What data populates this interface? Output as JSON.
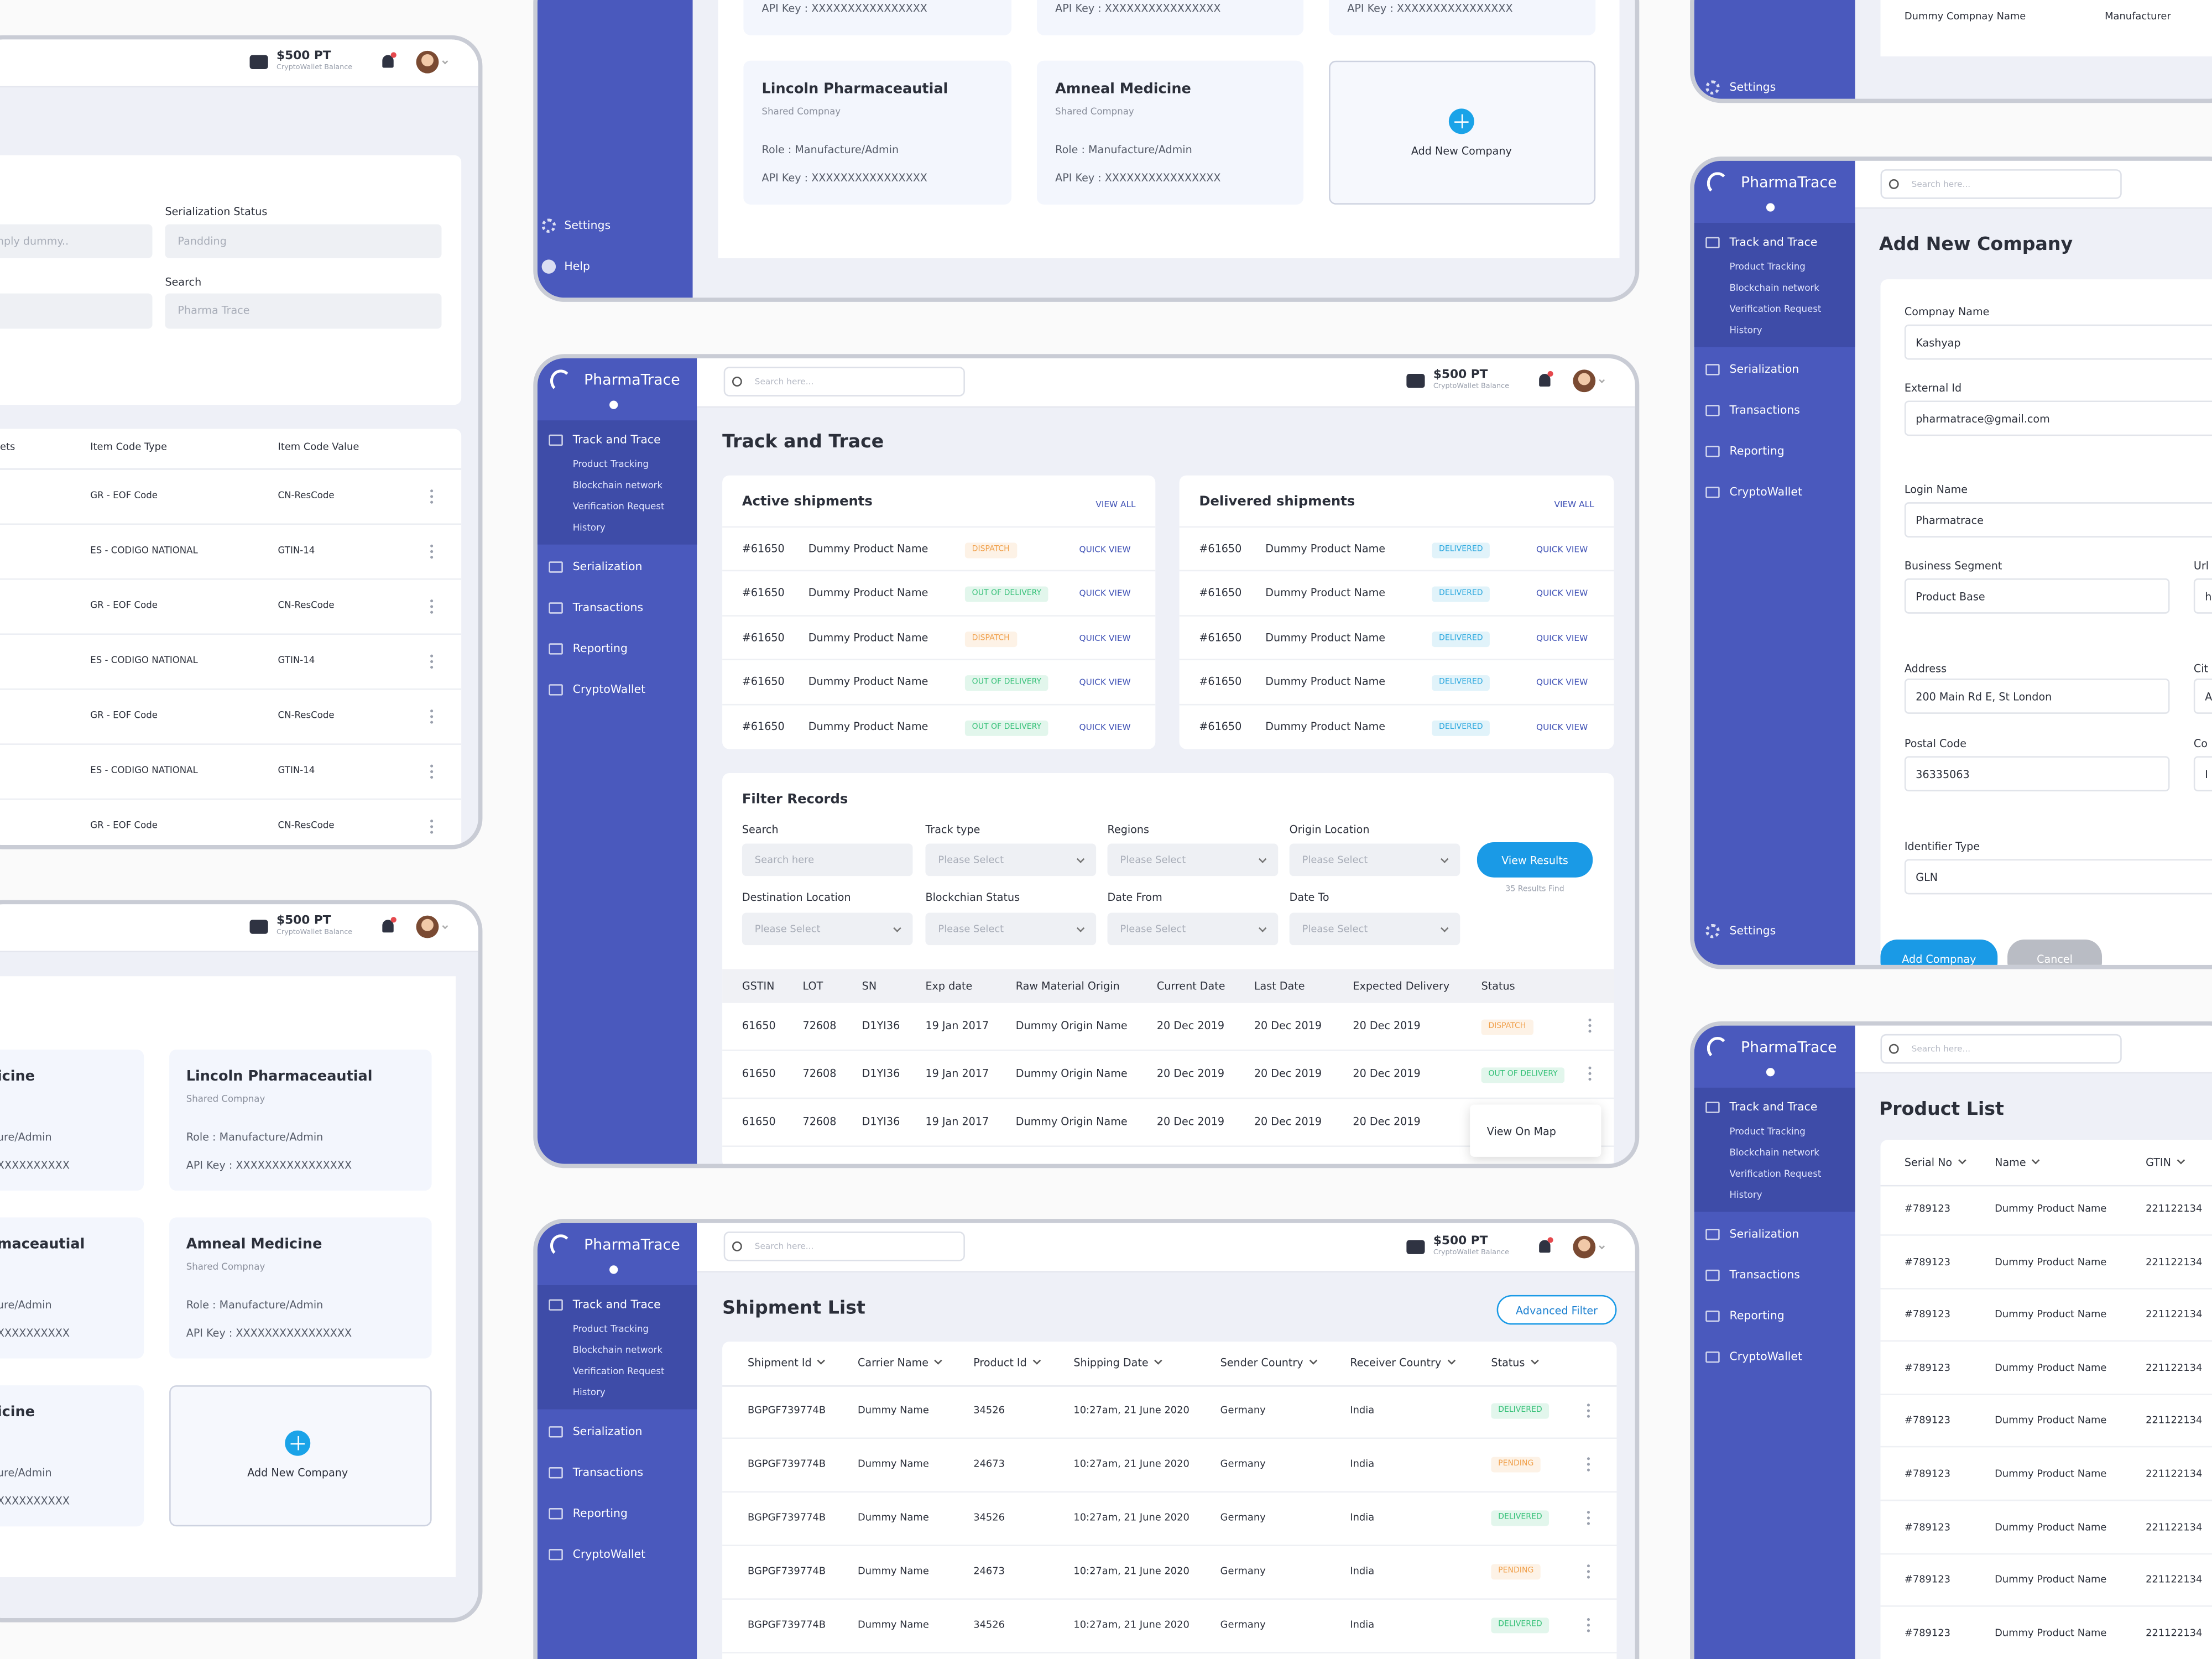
{
  "serial_panel": {
    "wallet": {
      "amount": "$500 PT",
      "label": "CryptoWallet Balance"
    },
    "fields": [
      {
        "value": "nply dummy.."
      },
      {
        "label": "Serialization Status",
        "value": "Pandding"
      },
      {
        "label": "Search",
        "value": "Pharma Trace"
      }
    ],
    "table": {
      "headers": [
        "ets",
        "Item Code Type",
        "Item Code Value"
      ],
      "rows": [
        [
          "GR - EOF Code",
          "CN-ResCode"
        ],
        [
          "ES - CODIGO NATIONAL",
          "GTIN-14"
        ],
        [
          "GR - EOF Code",
          "CN-ResCode"
        ],
        [
          "ES - CODIGO NATIONAL",
          "GTIN-14"
        ],
        [
          "GR - EOF Code",
          "CN-ResCode"
        ],
        [
          "ES - CODIGO NATIONAL",
          "GTIN-14"
        ],
        [
          "GR - EOF Code",
          "CN-ResCode"
        ]
      ]
    }
  },
  "company_panel": {
    "wallet": {
      "amount": "$500 PT",
      "label": "CryptoWallet Balance"
    },
    "cards": [
      {
        "name": "icine",
        "role": "ure/Admin",
        "api_key": "XXXXXXXXXX"
      },
      {
        "name": "Lincoln Pharmaceautial",
        "type": "Shared Compnay",
        "role": "Role : Manufacture/Admin",
        "api_key": "API Key : XXXXXXXXXXXXXXXX"
      },
      {
        "name": "maceautial",
        "role": "ure/Admin",
        "api_key": "XXXXXXXXXX"
      },
      {
        "name": "Amneal Medicine",
        "type": "Shared Compnay",
        "role": "Role : Manufacture/Admin",
        "api_key": "API Key : XXXXXXXXXXXXXXXX"
      },
      {
        "name": "icine",
        "role": "ure/Admin",
        "api_key": "XXXXXXXXXX"
      }
    ],
    "add_label": "Add New Company"
  },
  "company_panel_top": {
    "settings": "Settings",
    "help": "Help",
    "api_keys": [
      "API Key : XXXXXXXXXXXXXXXX",
      "API Key : XXXXXXXXXXXXXXXX",
      "API Key : XXXXXXXXXXXXXXXX"
    ],
    "cards": [
      {
        "name": "Lincoln Pharmaceautial",
        "type": "Shared Compnay",
        "role": "Role : Manufacture/Admin",
        "api_key": "API Key : XXXXXXXXXXXXXXXX"
      },
      {
        "name": "Amneal Medicine",
        "type": "Shared Compnay",
        "role": "Role : Manufacture/Admin",
        "api_key": "API Key : XXXXXXXXXXXXXXXX"
      }
    ],
    "add_label": "Add New Company"
  },
  "track_panel": {
    "nav": {
      "logo": "PharmaTrace",
      "main": "Track and Trace",
      "sub": [
        "Product Tracking",
        "Blockchain network",
        "Verification Request",
        "History"
      ],
      "items": [
        "Serialization",
        "Transactions",
        "Reporting",
        "CryptoWallet"
      ]
    },
    "search": "Search here...",
    "wallet": {
      "amount": "$500 PT",
      "label": "CryptoWallet Balance"
    },
    "title": "Track and Trace",
    "active": {
      "title": "Active shipments",
      "view_all": "VIEW ALL",
      "rows": [
        {
          "id": "#61650",
          "name": "Dummy Product Name",
          "status": {
            "label": "DISPATCH",
            "color": "#f0a04b"
          },
          "action": "QUICK VIEW"
        },
        {
          "id": "#61650",
          "name": "Dummy Product Name",
          "status": {
            "label": "OUT OF DELIVERY",
            "color": "#34c077"
          },
          "action": "QUICK VIEW"
        },
        {
          "id": "#61650",
          "name": "Dummy Product Name",
          "status": {
            "label": "DISPATCH",
            "color": "#f0a04b"
          },
          "action": "QUICK VIEW"
        },
        {
          "id": "#61650",
          "name": "Dummy Product Name",
          "status": {
            "label": "OUT OF DELIVERY",
            "color": "#34c077"
          },
          "action": "QUICK VIEW"
        },
        {
          "id": "#61650",
          "name": "Dummy Product Name",
          "status": {
            "label": "OUT OF DELIVERY",
            "color": "#34c077"
          },
          "action": "QUICK VIEW"
        }
      ]
    },
    "delivered": {
      "title": "Delivered shipments",
      "view_all": "VIEW ALL",
      "rows": [
        {
          "id": "#61650",
          "name": "Dummy Product Name",
          "status": {
            "label": "DELIVERED",
            "color": "#2aa7de"
          },
          "action": "QUICK VIEW"
        },
        {
          "id": "#61650",
          "name": "Dummy Product Name",
          "status": {
            "label": "DELIVERED",
            "color": "#2aa7de"
          },
          "action": "QUICK VIEW"
        },
        {
          "id": "#61650",
          "name": "Dummy Product Name",
          "status": {
            "label": "DELIVERED",
            "color": "#2aa7de"
          },
          "action": "QUICK VIEW"
        },
        {
          "id": "#61650",
          "name": "Dummy Product Name",
          "status": {
            "label": "DELIVERED",
            "color": "#2aa7de"
          },
          "action": "QUICK VIEW"
        },
        {
          "id": "#61650",
          "name": "Dummy Product Name",
          "status": {
            "label": "DELIVERED",
            "color": "#2aa7de"
          },
          "action": "QUICK VIEW"
        }
      ]
    },
    "filter": {
      "title": "Filter Records",
      "fields": [
        {
          "label": "Search",
          "placeholder": "Search here"
        },
        {
          "label": "Track type",
          "placeholder": "Please Select"
        },
        {
          "label": "Regions",
          "placeholder": "Please Select"
        },
        {
          "label": "Origin Location",
          "placeholder": "Please Select"
        },
        {
          "label": "Destination Location",
          "placeholder": "Please Select"
        },
        {
          "label": "Blockchian Status",
          "placeholder": "Please Select"
        },
        {
          "label": "Date From",
          "placeholder": "Please Select"
        },
        {
          "label": "Date To",
          "placeholder": "Please Select"
        }
      ],
      "button": "View Results",
      "results": "35 Results Find"
    },
    "table": {
      "headers": [
        "GSTIN",
        "LOT",
        "SN",
        "Exp date",
        "Raw Material Origin",
        "Current Date",
        "Last Date",
        "Expected Delivery",
        "Status"
      ],
      "rows": [
        {
          "cells": [
            "61650",
            "72608",
            "D1YI36",
            "19 Jan 2017",
            "Dummy Origin Name",
            "20 Dec 2019",
            "20 Dec 2019",
            "20 Dec 2019"
          ],
          "status": {
            "label": "DISPATCH",
            "color": "#f0a04b"
          }
        },
        {
          "cells": [
            "61650",
            "72608",
            "D1YI36",
            "19 Jan 2017",
            "Dummy Origin Name",
            "20 Dec 2019",
            "20 Dec 2019",
            "20 Dec 2019"
          ],
          "status": {
            "label": "OUT OF DELIVERY",
            "color": "#34c077"
          }
        },
        {
          "cells": [
            "61650",
            "72608",
            "D1YI36",
            "19 Jan 2017",
            "Dummy Origin Name",
            "20 Dec 2019",
            "20 Dec 2019",
            "20 Dec 2019"
          ]
        }
      ],
      "popup": "View On Map"
    }
  },
  "shipment_panel": {
    "nav": {
      "logo": "PharmaTrace",
      "main": "Track and Trace",
      "sub": [
        "Product Tracking",
        "Blockchain network",
        "Verification Request",
        "History"
      ],
      "items": [
        "Serialization",
        "Transactions",
        "Reporting",
        "CryptoWallet"
      ]
    },
    "search": "Search here...",
    "wallet": {
      "amount": "$500 PT",
      "label": "CryptoWallet Balance"
    },
    "title": "Shipment List",
    "filter_button": "Advanced Filter",
    "table": {
      "headers": [
        "Shipment Id",
        "Carrier Name",
        "Product Id",
        "Shipping Date",
        "Sender Country",
        "Receiver Country",
        "Status"
      ],
      "rows": [
        {
          "cells": [
            "BGPGF739774B",
            "Dummy Name",
            "34526",
            "10:27am, 21 June 2020",
            "Germany",
            "India"
          ],
          "status": {
            "label": "DELIVERED",
            "color": "#34c077"
          }
        },
        {
          "cells": [
            "BGPGF739774B",
            "Dummy Name",
            "24673",
            "10:27am, 21 June 2020",
            "Germany",
            "India"
          ],
          "status": {
            "label": "PENDING",
            "color": "#f0a04b"
          }
        },
        {
          "cells": [
            "BGPGF739774B",
            "Dummy Name",
            "34526",
            "10:27am, 21 June 2020",
            "Germany",
            "India"
          ],
          "status": {
            "label": "DELIVERED",
            "color": "#34c077"
          }
        },
        {
          "cells": [
            "BGPGF739774B",
            "Dummy Name",
            "24673",
            "10:27am, 21 June 2020",
            "Germany",
            "India"
          ],
          "status": {
            "label": "PENDING",
            "color": "#f0a04b"
          }
        },
        {
          "cells": [
            "BGPGF739774B",
            "Dummy Name",
            "34526",
            "10:27am, 21 June 2020",
            "Germany",
            "India"
          ],
          "status": {
            "label": "DELIVERED",
            "color": "#34c077"
          }
        }
      ]
    }
  },
  "company_list_panel": {
    "settings": "Settings",
    "row": [
      "Dummy Compnay Name",
      "Manufacturer"
    ]
  },
  "add_company_panel": {
    "nav": {
      "logo": "PharmaTrace",
      "main": "Track and Trace",
      "sub": [
        "Product Tracking",
        "Blockchain network",
        "Verification Request",
        "History"
      ],
      "items": [
        "Serialization",
        "Transactions",
        "Reporting",
        "CryptoWallet"
      ]
    },
    "search": "Search here...",
    "title": "Add New Company",
    "fields": [
      {
        "label": "Compnay Name",
        "value": "Kashyap"
      },
      {
        "label": "External Id",
        "value": "pharmatrace@gmail.com"
      },
      {
        "label": "Login Name",
        "value": "Pharmatrace"
      },
      {
        "label": "Business Segment",
        "value": "Product Base"
      },
      {
        "label": "Address",
        "value": "200 Main Rd E, St London"
      },
      {
        "label": "Postal Code",
        "value": "36335063"
      },
      {
        "label": "Identifier Type",
        "value": "GLN"
      }
    ],
    "side_fields": [
      {
        "label": "Url",
        "value": "h"
      },
      {
        "label": "Cit",
        "value": "A"
      },
      {
        "label": "Co",
        "value": "I"
      }
    ],
    "submit": "Add Compnay",
    "cancel": "Cancel",
    "settings": "Settings"
  },
  "product_panel": {
    "nav": {
      "logo": "PharmaTrace",
      "main": "Track and Trace",
      "sub": [
        "Product Tracking",
        "Blockchain network",
        "Verification Request",
        "History"
      ],
      "items": [
        "Serialization",
        "Transactions",
        "Reporting",
        "CryptoWallet"
      ]
    },
    "search": "Search here...",
    "title": "Product List",
    "table": {
      "headers": [
        "Serial No",
        "Name",
        "GTIN"
      ],
      "rows": [
        [
          "#789123",
          "Dummy Product Name",
          "221122134"
        ],
        [
          "#789123",
          "Dummy Product Name",
          "221122134"
        ],
        [
          "#789123",
          "Dummy Product Name",
          "221122134"
        ],
        [
          "#789123",
          "Dummy Product Name",
          "221122134"
        ],
        [
          "#789123",
          "Dummy Product Name",
          "221122134"
        ],
        [
          "#789123",
          "Dummy Product Name",
          "221122134"
        ],
        [
          "#789123",
          "Dummy Product Name",
          "221122134"
        ],
        [
          "#789123",
          "Dummy Product Name",
          "221122134"
        ],
        [
          "#789123",
          "Dummy Product Name",
          "221122134"
        ]
      ]
    }
  }
}
